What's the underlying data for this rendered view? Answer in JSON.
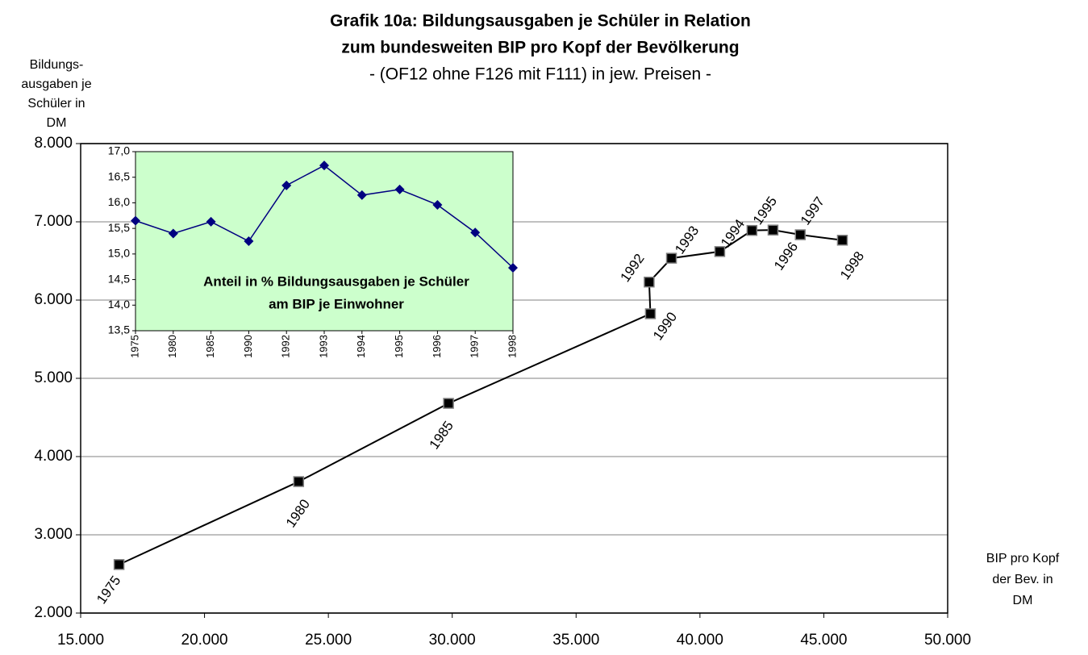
{
  "chart_data": [
    {
      "type": "line",
      "title": [
        "Grafik 10a: Bildungsausgaben je Schüler in Relation",
        "zum bundesweiten BIP pro Kopf der Bevölkerung"
      ],
      "subtitle": "- (OF12 ohne F126 mit F111) in jew. Preisen -",
      "y_label": [
        "Bildungs-",
        "ausgaben je",
        "Schüler in",
        "DM"
      ],
      "x_label": [
        "BIP pro Kopf",
        "der Bev. in",
        "DM"
      ],
      "xlim": [
        15000,
        50000
      ],
      "xticks": [
        {
          "value": 15000,
          "label": "15.000"
        },
        {
          "value": 20000,
          "label": "20.000"
        },
        {
          "value": 25000,
          "label": "25.000"
        },
        {
          "value": 30000,
          "label": "30.000"
        },
        {
          "value": 35000,
          "label": "35.000"
        },
        {
          "value": 40000,
          "label": "40.000"
        },
        {
          "value": 45000,
          "label": "45.000"
        },
        {
          "value": 50000,
          "label": "50.000"
        }
      ],
      "ylim": [
        2000,
        8000
      ],
      "yticks": [
        {
          "value": 2000,
          "label": "2.000"
        },
        {
          "value": 3000,
          "label": "3.000"
        },
        {
          "value": 4000,
          "label": "4.000"
        },
        {
          "value": 5000,
          "label": "5.000"
        },
        {
          "value": 6000,
          "label": "6.000"
        },
        {
          "value": 7000,
          "label": "7.000"
        },
        {
          "value": 8000,
          "label": "8.000"
        }
      ],
      "grid": true,
      "series": [
        {
          "color": "#000000",
          "labels": [
            "1975",
            "1980",
            "1985",
            "1990",
            "1992",
            "1993",
            "1994",
            "1995",
            "1996",
            "1997",
            "1998"
          ],
          "x": [
            16550,
            23800,
            29850,
            38000,
            37950,
            38850,
            40800,
            42100,
            42950,
            44050,
            45750
          ],
          "values": [
            2620,
            3680,
            4680,
            5825,
            6230,
            6535,
            6620,
            6890,
            6895,
            6835,
            6765
          ]
        }
      ]
    },
    {
      "type": "line",
      "annotation": [
        "Anteil in % Bildungsausgaben je Schüler",
        "am BIP je Einwohner"
      ],
      "categories": [
        "1975",
        "1980",
        "1985",
        "1990",
        "1992",
        "1993",
        "1994",
        "1995",
        "1996",
        "1997",
        "1998"
      ],
      "ylim": [
        13.5,
        17.0
      ],
      "yticks": [
        {
          "value": 13.5,
          "label": "13,5"
        },
        {
          "value": 14.0,
          "label": "14,0"
        },
        {
          "value": 14.5,
          "label": "14,5"
        },
        {
          "value": 15.0,
          "label": "15,0"
        },
        {
          "value": 15.5,
          "label": "15,5"
        },
        {
          "value": 16.0,
          "label": "16,0"
        },
        {
          "value": 16.5,
          "label": "16,5"
        },
        {
          "value": 17.0,
          "label": "17,0"
        }
      ],
      "background": "#ccffcc",
      "series": [
        {
          "color": "#000080",
          "values": [
            15.65,
            15.4,
            15.63,
            15.25,
            16.34,
            16.73,
            16.15,
            16.26,
            15.96,
            15.42,
            14.73
          ]
        }
      ]
    }
  ]
}
